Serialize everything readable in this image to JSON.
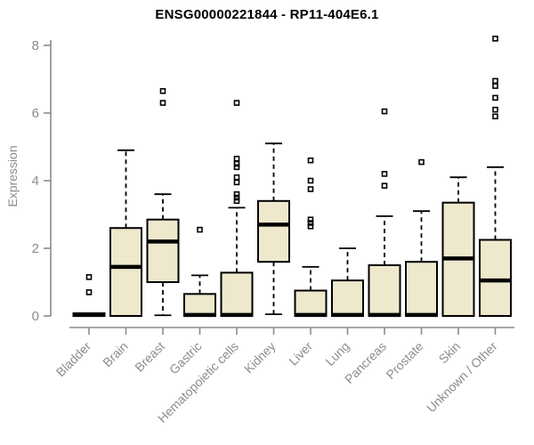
{
  "chart_data": {
    "type": "boxplot",
    "title": "ENSG00000221844 - RP11-404E6.1",
    "ylabel": "Expression",
    "xlabel": "",
    "ylim": [
      0,
      8
    ],
    "yticks": [
      0,
      2,
      4,
      6,
      8
    ],
    "grid": false,
    "legend": "none",
    "box_fill_color": "#EEE8CD",
    "box_line_color": "#000000",
    "axis_color": "#8c8c8c",
    "categories": [
      "Bladder",
      "Brain",
      "Breast",
      "Gastric",
      "Hematopoietic cells",
      "Kidney",
      "Liver",
      "Lung",
      "Pancreas",
      "Prostate",
      "Skin",
      "Unknown / Other"
    ],
    "boxes": [
      {
        "category": "Bladder",
        "whisker_low": 0,
        "q1": 0,
        "median": 0.03,
        "q3": 0.08,
        "whisker_high": 0.08,
        "outliers": [
          0.7,
          1.15
        ]
      },
      {
        "category": "Brain",
        "whisker_low": 0,
        "q1": 0,
        "median": 1.45,
        "q3": 2.6,
        "whisker_high": 4.9,
        "outliers": []
      },
      {
        "category": "Breast",
        "whisker_low": 0.02,
        "q1": 1.0,
        "median": 2.2,
        "q3": 2.85,
        "whisker_high": 3.6,
        "outliers": [
          6.3,
          6.65
        ]
      },
      {
        "category": "Gastric",
        "whisker_low": 0,
        "q1": 0,
        "median": 0.03,
        "q3": 0.65,
        "whisker_high": 1.2,
        "outliers": [
          2.55
        ]
      },
      {
        "category": "Hematopoietic cells",
        "whisker_low": 0,
        "q1": 0,
        "median": 0.03,
        "q3": 1.28,
        "whisker_high": 3.2,
        "outliers": [
          3.4,
          3.5,
          3.6,
          3.95,
          4.1,
          4.4,
          4.5,
          4.65,
          6.3
        ]
      },
      {
        "category": "Kidney",
        "whisker_low": 0.05,
        "q1": 1.6,
        "median": 2.7,
        "q3": 3.4,
        "whisker_high": 5.1,
        "outliers": []
      },
      {
        "category": "Liver",
        "whisker_low": 0,
        "q1": 0,
        "median": 0.03,
        "q3": 0.75,
        "whisker_high": 1.45,
        "outliers": [
          2.65,
          2.75,
          2.85,
          3.75,
          4.0,
          4.6
        ]
      },
      {
        "category": "Lung",
        "whisker_low": 0,
        "q1": 0,
        "median": 0.03,
        "q3": 1.05,
        "whisker_high": 2.0,
        "outliers": []
      },
      {
        "category": "Pancreas",
        "whisker_low": 0,
        "q1": 0,
        "median": 0.03,
        "q3": 1.5,
        "whisker_high": 2.95,
        "outliers": [
          3.85,
          4.2,
          6.05
        ]
      },
      {
        "category": "Prostate",
        "whisker_low": 0,
        "q1": 0,
        "median": 0.03,
        "q3": 1.6,
        "whisker_high": 3.1,
        "outliers": [
          4.55
        ]
      },
      {
        "category": "Skin",
        "whisker_low": 0,
        "q1": 0,
        "median": 1.7,
        "q3": 3.35,
        "whisker_high": 4.1,
        "outliers": []
      },
      {
        "category": "Unknown / Other",
        "whisker_low": 0,
        "q1": 0,
        "median": 1.05,
        "q3": 2.25,
        "whisker_high": 4.4,
        "outliers": [
          5.9,
          6.1,
          6.45,
          6.8,
          6.95,
          8.2
        ]
      }
    ]
  }
}
